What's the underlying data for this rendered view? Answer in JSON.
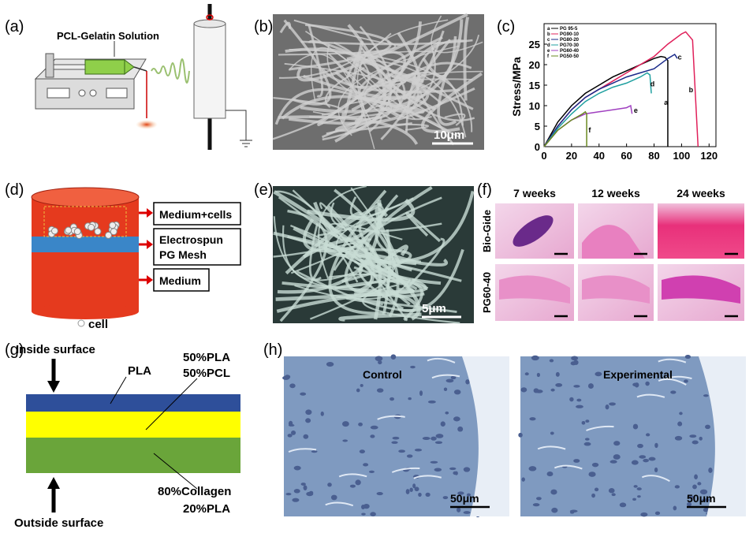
{
  "panels": {
    "a": {
      "label": "(a)",
      "annotation": "PCL-Gelatin Solution"
    },
    "b": {
      "label": "(b)",
      "scale_bar": "10μm"
    },
    "c": {
      "label": "(c)"
    },
    "d": {
      "label": "(d)",
      "boxes": [
        [
          "Medium+cells"
        ],
        [
          "Electrospun",
          "PG Mesh"
        ],
        [
          "Medium"
        ]
      ],
      "legend": "cell"
    },
    "e": {
      "label": "(e)",
      "scale_bar": "5μm"
    },
    "f": {
      "label": "(f)",
      "columns": [
        "7 weeks",
        "12 weeks",
        "24 weeks"
      ],
      "rows": [
        "Bio-Gide",
        "PG60-40"
      ]
    },
    "g": {
      "label": "(g)",
      "inside": "Inside surface",
      "outside": "Outside surface",
      "layers": [
        [
          "PLA"
        ],
        [
          "50%PLA",
          "50%PCL"
        ],
        [
          "80%Collagen",
          "20%PLA"
        ]
      ]
    },
    "h": {
      "label": "(h)",
      "images": [
        {
          "caption": "Control",
          "scale_bar": "50μm"
        },
        {
          "caption": "Experimental",
          "scale_bar": "50μm"
        }
      ]
    }
  },
  "chart_data": {
    "type": "line",
    "y_label": "Stress/MPa",
    "xlim": [
      0,
      125
    ],
    "ylim": [
      0,
      30
    ],
    "xticks": [
      0,
      20,
      40,
      60,
      80,
      100,
      120
    ],
    "yticks": [
      0,
      5,
      10,
      15,
      20,
      25
    ],
    "series": [
      {
        "letter": "a",
        "name": "PG 95-5",
        "color": "#000000",
        "x": [
          0,
          5,
          10,
          20,
          30,
          40,
          50,
          60,
          70,
          80,
          85,
          88,
          90,
          90
        ],
        "values": [
          0,
          3,
          6,
          10,
          13,
          15,
          17,
          18.5,
          20,
          21.5,
          22,
          21.8,
          21,
          0
        ]
      },
      {
        "letter": "b",
        "name": "PG90-10",
        "color": "#e0205a",
        "x": [
          0,
          10,
          20,
          30,
          40,
          50,
          60,
          70,
          80,
          90,
          100,
          103,
          108,
          112
        ],
        "values": [
          0,
          5,
          9,
          12,
          14,
          16,
          18,
          20,
          22,
          25,
          27.5,
          28,
          26,
          0
        ]
      },
      {
        "letter": "c",
        "name": "PG80-20",
        "color": "#1a2a8a",
        "x": [
          0,
          10,
          20,
          30,
          40,
          50,
          60,
          70,
          80,
          90,
          95,
          97
        ],
        "values": [
          0,
          5,
          9,
          12,
          14,
          15.5,
          17,
          18,
          19,
          21.5,
          22.5,
          21.5
        ]
      },
      {
        "letter": "d",
        "name": "PG70-30",
        "color": "#20a0a0",
        "x": [
          0,
          10,
          20,
          30,
          40,
          50,
          60,
          70,
          75,
          77,
          78
        ],
        "values": [
          0,
          4.5,
          8,
          11,
          13,
          14.5,
          15.5,
          17,
          18,
          17.5,
          13
        ]
      },
      {
        "letter": "e",
        "name": "PG60-40",
        "color": "#a040c0",
        "x": [
          0,
          10,
          20,
          30,
          40,
          50,
          60,
          63,
          64
        ],
        "values": [
          0,
          4,
          6.5,
          8,
          8.5,
          9,
          9.5,
          10,
          8
        ]
      },
      {
        "letter": "f",
        "name": "PG50-50",
        "color": "#6a8a20",
        "x": [
          0,
          10,
          20,
          28,
          30,
          31,
          31
        ],
        "values": [
          0,
          4,
          6.5,
          8,
          8.5,
          8,
          0
        ]
      }
    ]
  }
}
